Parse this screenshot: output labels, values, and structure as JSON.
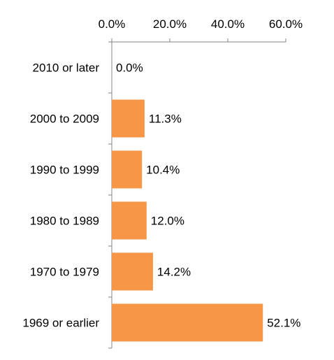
{
  "chart_data": {
    "type": "bar",
    "orientation": "horizontal",
    "categories": [
      "2010 or later",
      "2000 to 2009",
      "1990 to 1999",
      "1980 to 1989",
      "1970 to 1979",
      "1969 or earlier"
    ],
    "values": [
      0.0,
      11.3,
      10.4,
      12.0,
      14.2,
      52.1
    ],
    "value_labels": [
      "0.0%",
      "11.3%",
      "10.4%",
      "12.0%",
      "14.2%",
      "52.1%"
    ],
    "x_ticks": [
      "0.0%",
      "20.0%",
      "40.0%",
      "60.0%"
    ],
    "x_tick_values": [
      0,
      20,
      40,
      60
    ],
    "xlim": [
      0,
      60
    ],
    "x_axis_position": "top",
    "grid": false,
    "legend": "none",
    "bar_color": "#F79646",
    "axis_color": "#868686"
  }
}
